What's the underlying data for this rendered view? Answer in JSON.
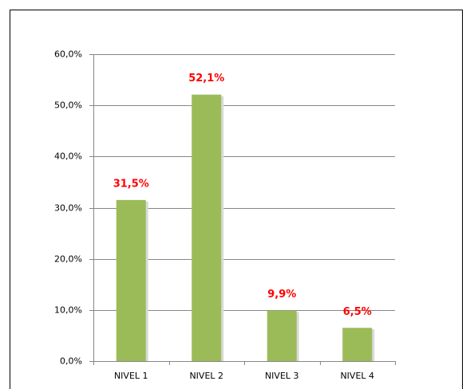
{
  "chart_data": {
    "type": "bar",
    "categories": [
      "NIVEL 1",
      "NIVEL 2",
      "NIVEL 3",
      "NIVEL 4"
    ],
    "values": [
      31.5,
      52.1,
      9.9,
      6.5
    ],
    "value_labels": [
      "31,5%",
      "52,1%",
      "9,9%",
      "6,5%"
    ],
    "color": "#9bbb59",
    "ylim": [
      0,
      60
    ],
    "yticks": [
      {
        "value": 0,
        "label": "0,0%"
      },
      {
        "value": 10,
        "label": "10,0%"
      },
      {
        "value": 20,
        "label": "20,0%"
      },
      {
        "value": 30,
        "label": "30,0%"
      },
      {
        "value": 40,
        "label": "40,0%"
      },
      {
        "value": 50,
        "label": "50,0%"
      },
      {
        "value": 60,
        "label": "60,0%"
      }
    ],
    "grid": true
  }
}
